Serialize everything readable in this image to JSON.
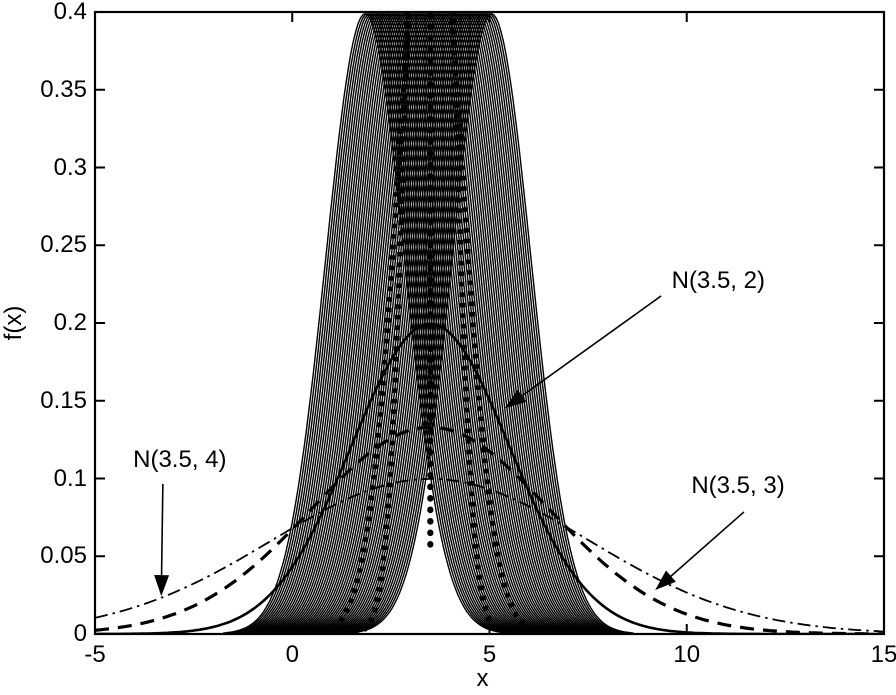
{
  "figure": {
    "background_color": "#ffffff",
    "line_color": "#000000"
  },
  "chart_data": {
    "type": "line",
    "title": "",
    "xlabel": "x",
    "ylabel": "f(x)",
    "xlim": [
      -5,
      15
    ],
    "ylim": [
      0,
      0.4
    ],
    "x_ticks": [
      "-5",
      "0",
      "5",
      "10",
      "15"
    ],
    "y_ticks": [
      "0",
      "0.05",
      "0.1",
      "0.15",
      "0.2",
      "0.25",
      "0.3",
      "0.35",
      "0.4"
    ],
    "grid": false,
    "legend": "none",
    "series": [
      {
        "name": "N(3.5, 2)",
        "distribution": "normal",
        "mean": 3.5,
        "std": 2,
        "peak_value": 0.1995,
        "line_style": "solid",
        "line_width": 2.6
      },
      {
        "name": "N(3.5, 3)",
        "distribution": "normal",
        "mean": 3.5,
        "std": 3,
        "peak_value": 0.133,
        "line_style": "dashed",
        "line_width": 3.2
      },
      {
        "name": "N(3.5, 4)",
        "distribution": "normal",
        "mean": 3.5,
        "std": 4,
        "peak_value": 0.0997,
        "line_style": "dash-dot",
        "line_width": 1.8
      },
      {
        "name": "gaussian-bundle",
        "distribution": "normal-family",
        "std": 1,
        "mean_range": [
          1.85,
          5.05
        ],
        "count": 57,
        "line_style": "solid",
        "line_width": 1.4,
        "description": "dense hatched band of many overlapping unit-variance gaussian curves centered near x=3.5, flat-topped at the axis limit 0.4"
      }
    ],
    "center_emphasis": {
      "mean": 3.5,
      "heavy_dashed_stds": [
        0.5,
        0.8
      ],
      "heavy_dash_width": 5.5,
      "dotted_mean_line": {
        "x": 3.5,
        "f_top": 0.398,
        "f_bottom": 0.055
      }
    },
    "annotations": [
      {
        "text": "N(3.5, 2)",
        "label_at": [
          10.8,
          0.227
        ],
        "arrow_from": [
          9.35,
          0.2174
        ],
        "arrow_to": [
          5.39,
          0.1453
        ]
      },
      {
        "text": "N(3.5, 4)",
        "label_at": [
          -2.85,
          0.112
        ],
        "arrow_from": [
          -3.28,
          0.0965
        ],
        "arrow_to": [
          -3.32,
          0.0244
        ]
      },
      {
        "text": "N(3.5, 3)",
        "label_at": [
          11.3,
          0.0952
        ],
        "arrow_from": [
          11.45,
          0.0785
        ],
        "arrow_to": [
          9.2,
          0.0283
        ]
      }
    ]
  }
}
